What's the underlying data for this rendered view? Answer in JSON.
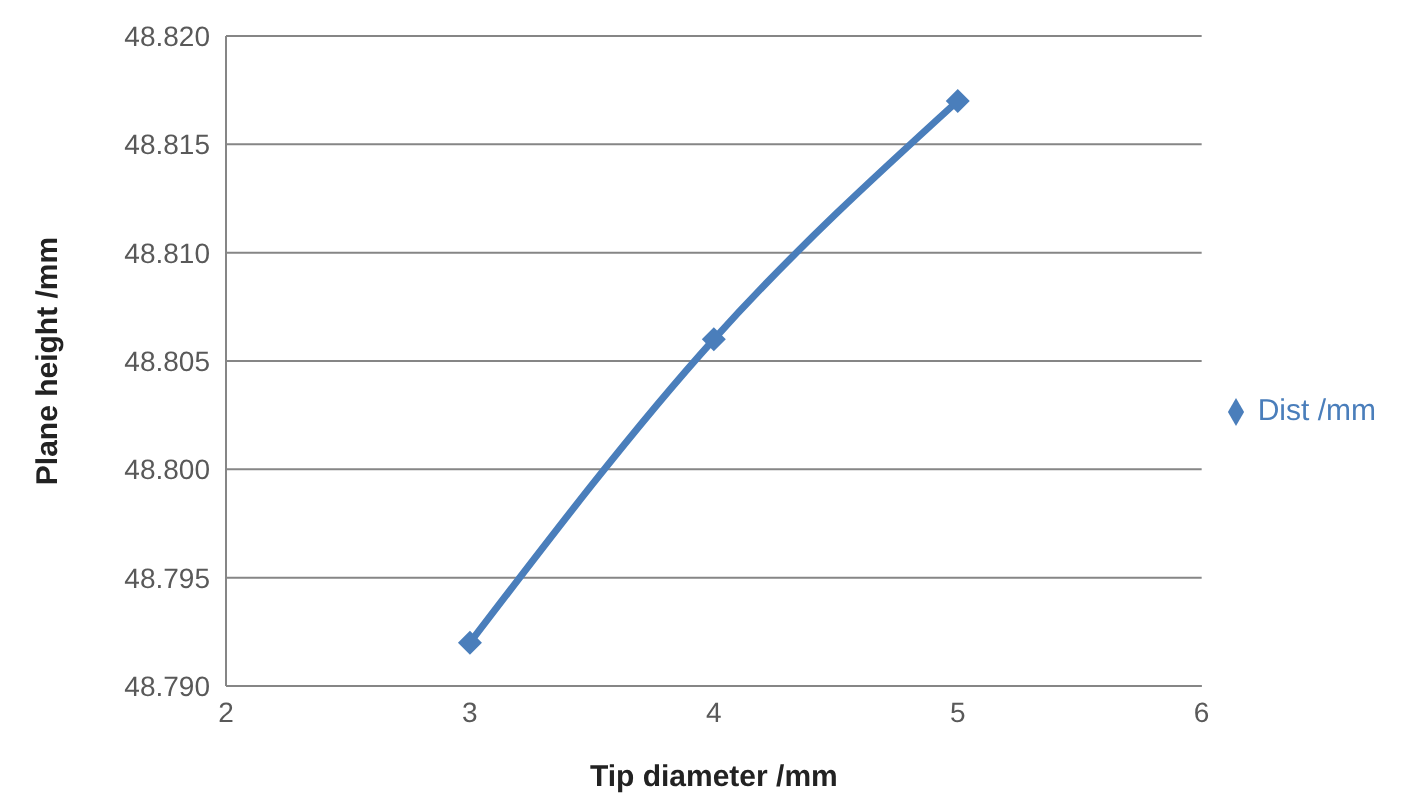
{
  "chart_data": {
    "type": "line",
    "xlabel": "Tip diameter /mm",
    "ylabel": "Plane height /mm",
    "x": [
      3,
      4,
      5
    ],
    "series": [
      {
        "name": "Dist /mm",
        "color": "#4a7ebb",
        "values": [
          48.792,
          48.806,
          48.817
        ]
      }
    ],
    "xlim": [
      2,
      6
    ],
    "xticks": [
      2,
      3,
      4,
      5,
      6
    ],
    "ylim": [
      48.79,
      48.82
    ],
    "yticks": [
      {
        "value": 48.79,
        "label": "48.790"
      },
      {
        "value": 48.795,
        "label": "48.795"
      },
      {
        "value": 48.8,
        "label": "48.800"
      },
      {
        "value": 48.805,
        "label": "48.805"
      },
      {
        "value": 48.81,
        "label": "48.810"
      },
      {
        "value": 48.815,
        "label": "48.815"
      },
      {
        "value": 48.82,
        "label": "48.820"
      }
    ],
    "grid": "y",
    "legend": "right",
    "marker": "diamond",
    "line_style": "solid"
  }
}
